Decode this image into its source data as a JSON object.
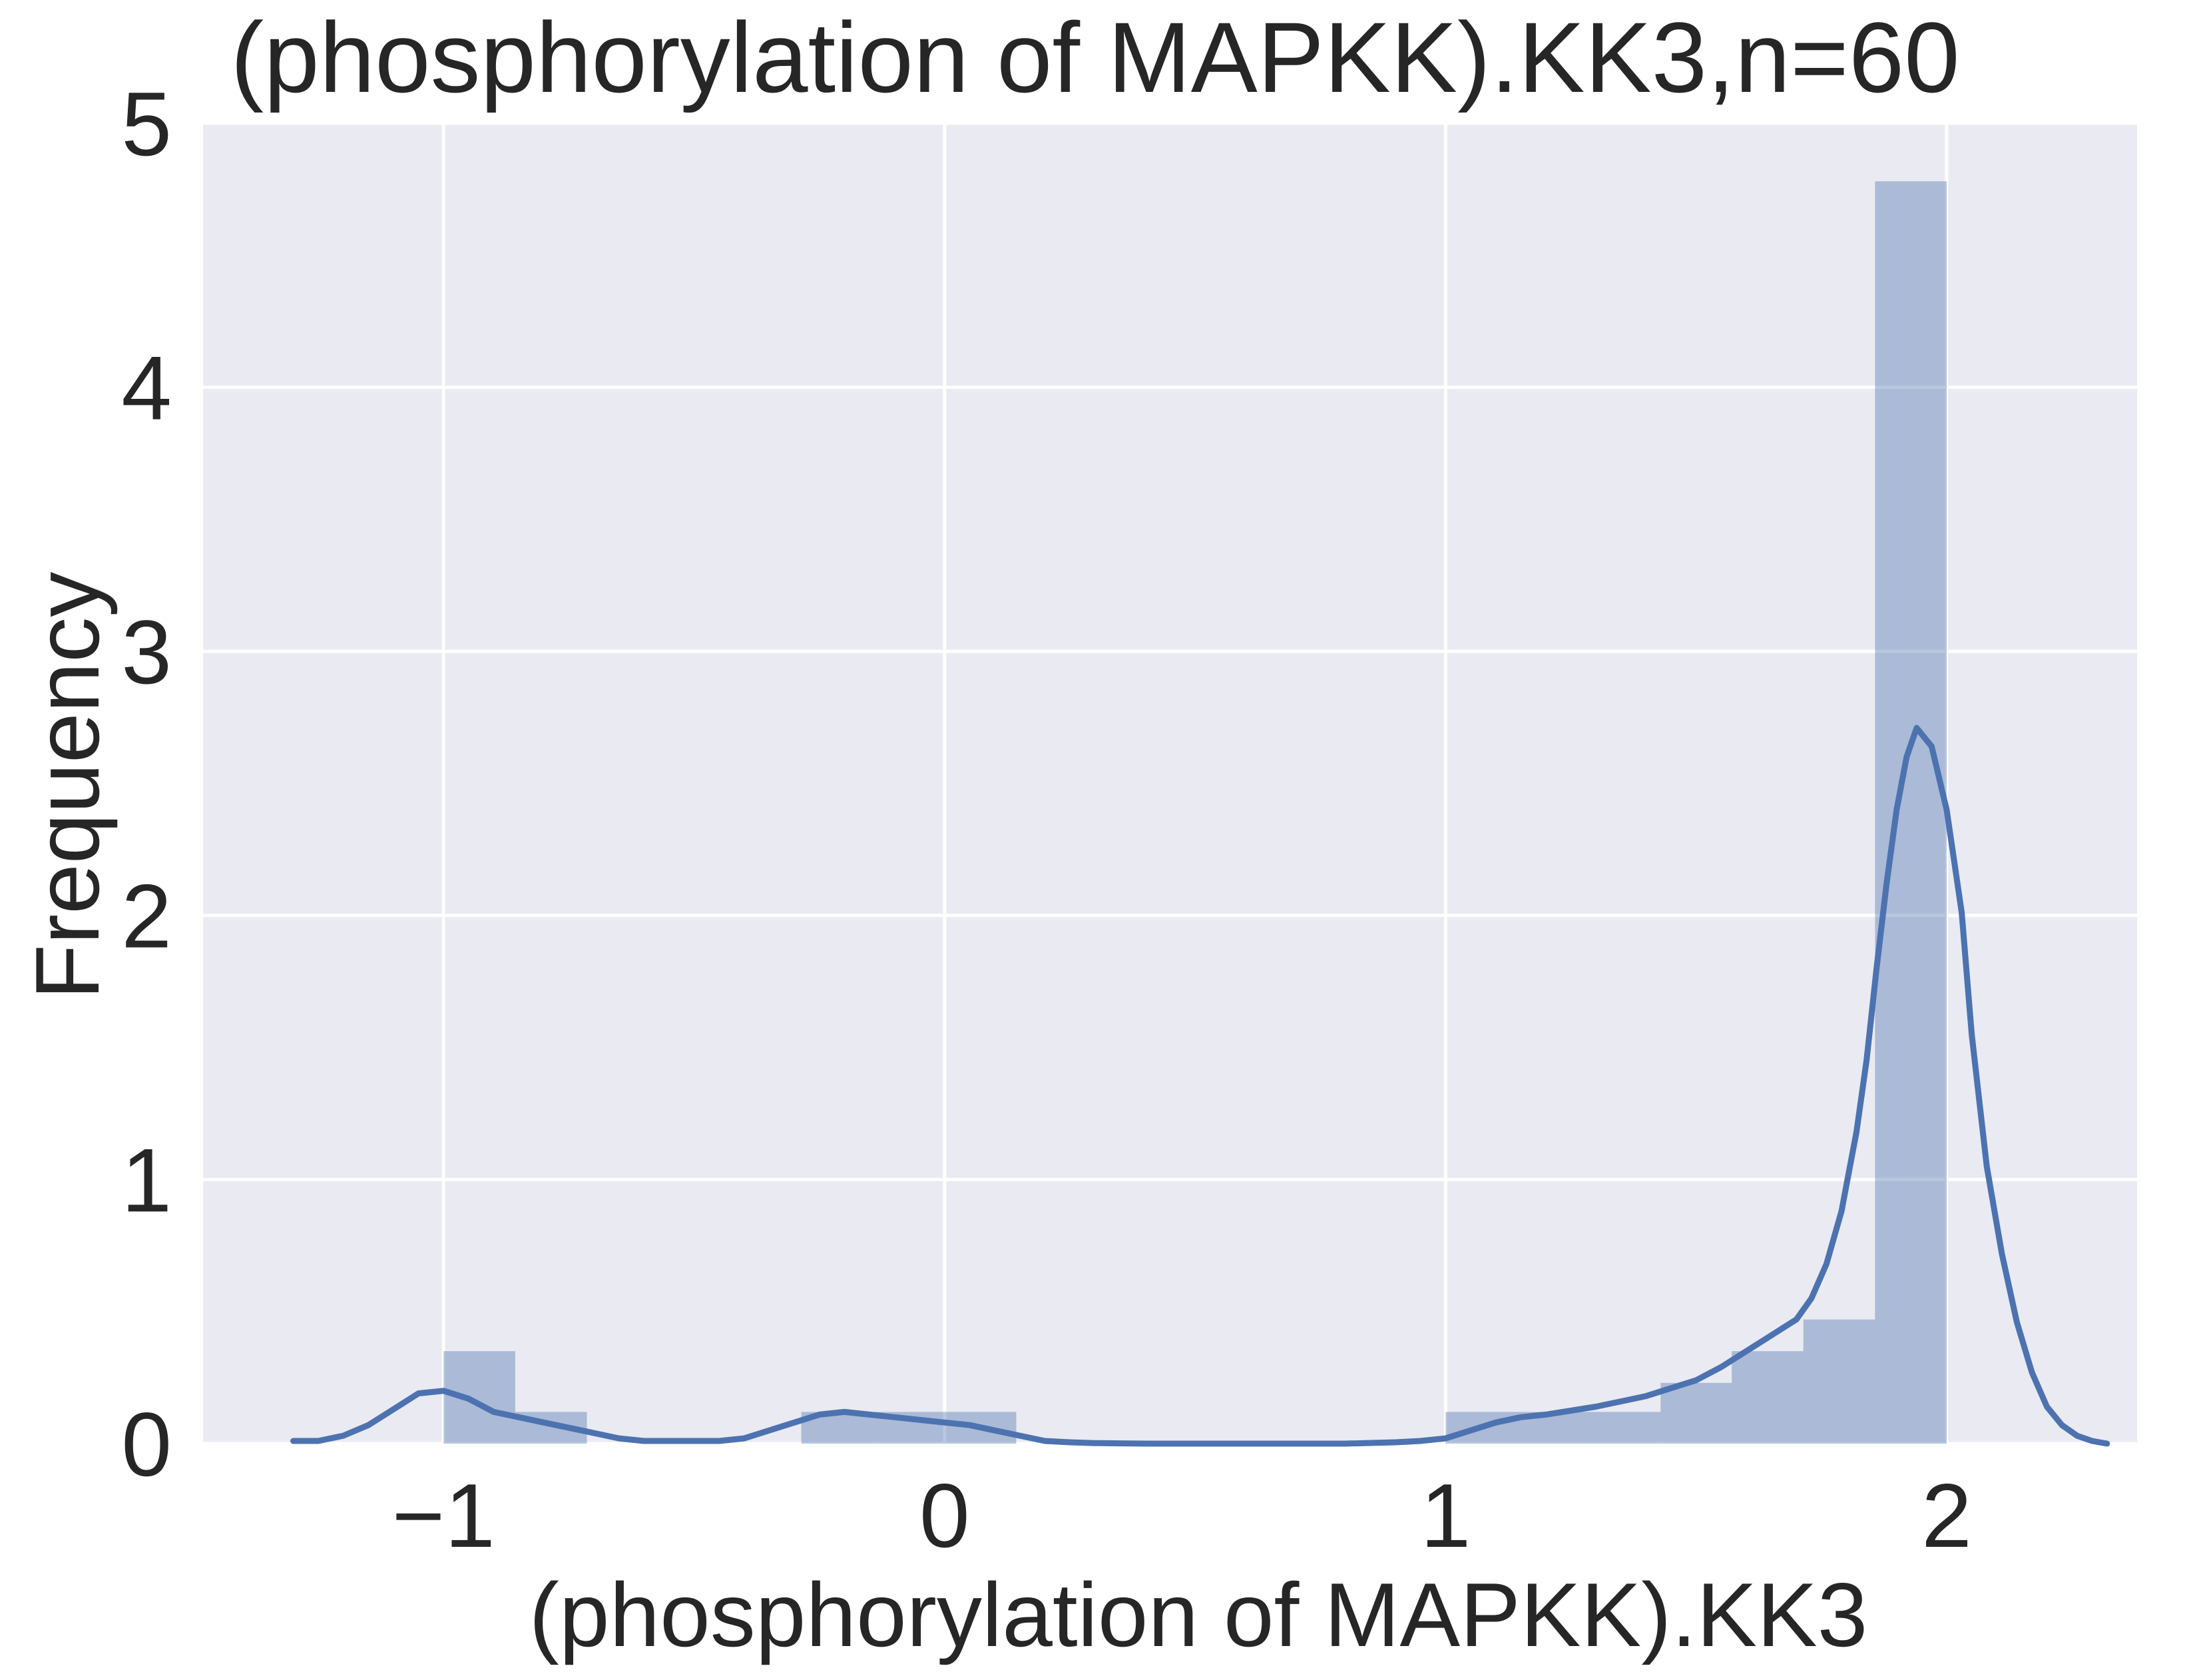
{
  "chart_data": {
    "type": "bar",
    "title": "(phosphorylation of MAPKK).KK3,n=60",
    "xlabel": "(phosphorylation of MAPKK).KK3",
    "ylabel": "Frequency",
    "xlim": [
      -1.48,
      2.38
    ],
    "ylim": [
      0,
      5.0
    ],
    "xticks": [
      -1,
      0,
      1,
      2
    ],
    "xtick_labels": [
      "−1",
      "0",
      "1",
      "2"
    ],
    "yticks": [
      0,
      1,
      2,
      3,
      4,
      5
    ],
    "ytick_labels": [
      "0",
      "1",
      "2",
      "3",
      "4",
      "5"
    ],
    "grid": true,
    "colors": {
      "background": "#eaeaf2",
      "grid": "#ffffff",
      "bar": "#4c72b0",
      "line": "#4c72b0",
      "text": "#262626"
    },
    "histogram": {
      "bin_edges": [
        -1.0,
        -0.857,
        -0.714,
        -0.571,
        -0.429,
        -0.286,
        -0.143,
        0.0,
        0.143,
        0.286,
        0.429,
        0.571,
        0.714,
        0.857,
        1.0,
        1.143,
        1.286,
        1.429,
        1.571,
        1.714,
        1.857,
        2.0
      ],
      "values": [
        0.35,
        0.12,
        0.0,
        0.0,
        0.0,
        0.12,
        0.12,
        0.12,
        0.0,
        0.0,
        0.0,
        0.0,
        0.0,
        0.0,
        0.12,
        0.12,
        0.12,
        0.23,
        0.35,
        0.47,
        4.78
      ]
    },
    "kde": {
      "x": [
        -1.3,
        -1.25,
        -1.2,
        -1.15,
        -1.1,
        -1.05,
        -1.0,
        -0.95,
        -0.9,
        -0.85,
        -0.8,
        -0.75,
        -0.7,
        -0.65,
        -0.6,
        -0.55,
        -0.5,
        -0.45,
        -0.4,
        -0.35,
        -0.3,
        -0.25,
        -0.2,
        -0.15,
        -0.1,
        -0.05,
        0.0,
        0.05,
        0.1,
        0.15,
        0.2,
        0.25,
        0.3,
        0.35,
        0.4,
        0.5,
        0.6,
        0.7,
        0.8,
        0.9,
        0.95,
        1.0,
        1.05,
        1.1,
        1.15,
        1.2,
        1.3,
        1.4,
        1.5,
        1.55,
        1.6,
        1.65,
        1.7,
        1.73,
        1.76,
        1.79,
        1.82,
        1.84,
        1.86,
        1.88,
        1.9,
        1.92,
        1.94,
        1.97,
        2.0,
        2.03,
        2.05,
        2.08,
        2.11,
        2.14,
        2.17,
        2.2,
        2.23,
        2.26,
        2.29,
        2.32
      ],
      "y": [
        0.01,
        0.01,
        0.03,
        0.07,
        0.13,
        0.19,
        0.2,
        0.17,
        0.12,
        0.1,
        0.08,
        0.06,
        0.04,
        0.02,
        0.01,
        0.01,
        0.01,
        0.01,
        0.02,
        0.05,
        0.08,
        0.11,
        0.12,
        0.11,
        0.1,
        0.09,
        0.08,
        0.07,
        0.05,
        0.03,
        0.01,
        0.005,
        0.002,
        0.001,
        0.0,
        0.0,
        0.0,
        0.0,
        0.0,
        0.005,
        0.01,
        0.02,
        0.05,
        0.08,
        0.1,
        0.11,
        0.14,
        0.18,
        0.24,
        0.29,
        0.35,
        0.41,
        0.47,
        0.55,
        0.68,
        0.88,
        1.18,
        1.45,
        1.8,
        2.12,
        2.4,
        2.6,
        2.71,
        2.64,
        2.4,
        2.01,
        1.55,
        1.05,
        0.72,
        0.46,
        0.27,
        0.14,
        0.07,
        0.03,
        0.01,
        0.0
      ]
    }
  }
}
